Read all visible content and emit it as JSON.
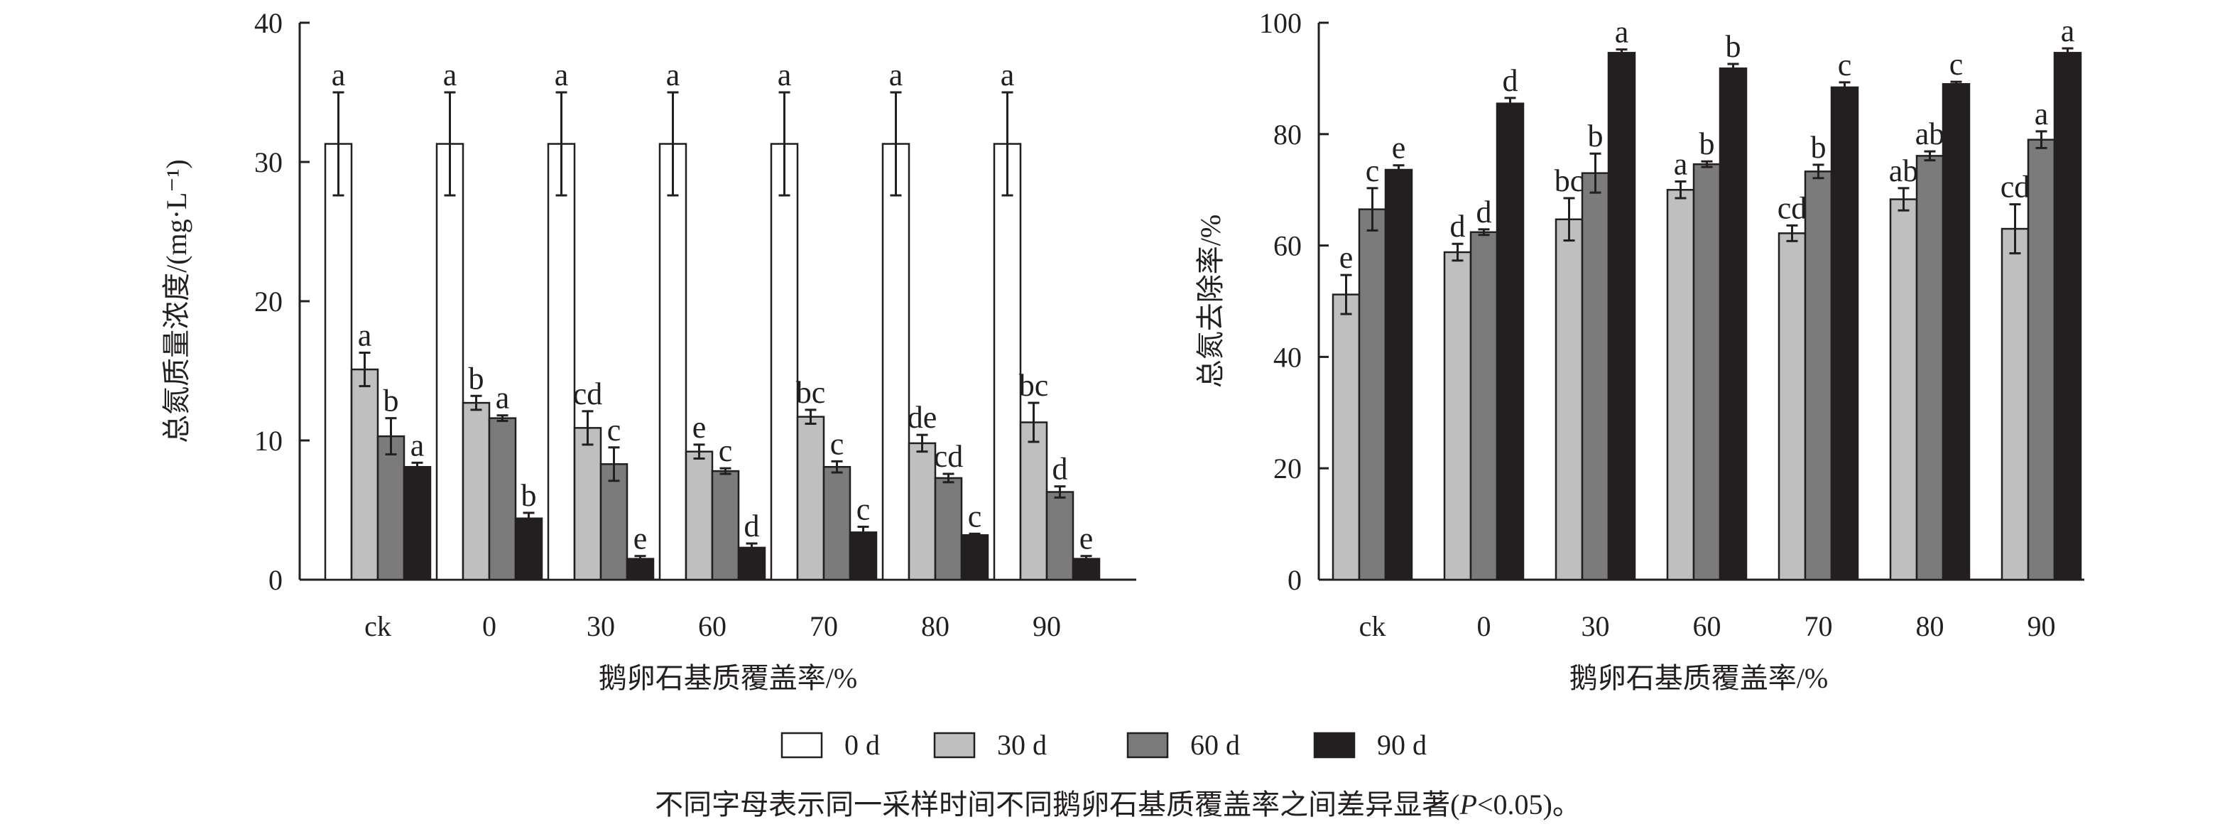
{
  "colors": {
    "0 d": "#ffffff",
    "30 d": "#bfbfbf",
    "60 d": "#7b7b7b",
    "90 d": "#231f20",
    "axis": "#231f20"
  },
  "legend": [
    "0 d",
    "30 d",
    "60 d",
    "90 d"
  ],
  "caption": {
    "pre": "不同字母表示同一采样时间不同鹅卵石基质覆盖率之间差异显著(",
    "italic": "P",
    "post": "<0.05)。"
  },
  "chart_data": [
    {
      "type": "bar",
      "xlabel": "鹅卵石基质覆盖率/%",
      "ylabel": "总氮质量浓度/(mg·L⁻¹)",
      "categories": [
        "ck",
        "0",
        "30",
        "60",
        "70",
        "80",
        "90"
      ],
      "ylim": [
        0,
        40
      ],
      "yticks": [
        0,
        10,
        20,
        30,
        40
      ],
      "grid": false,
      "series": [
        {
          "name": "0 d",
          "values": [
            31.3,
            31.3,
            31.3,
            31.3,
            31.3,
            31.3,
            31.3
          ],
          "errors": [
            3.7,
            3.7,
            3.7,
            3.7,
            3.7,
            3.7,
            3.7
          ],
          "labels": [
            "a",
            "a",
            "a",
            "a",
            "a",
            "a",
            "a"
          ]
        },
        {
          "name": "30 d",
          "values": [
            15.1,
            12.7,
            10.9,
            9.2,
            11.7,
            9.8,
            11.3
          ],
          "errors": [
            1.2,
            0.5,
            1.2,
            0.5,
            0.5,
            0.6,
            1.4
          ],
          "labels": [
            "a",
            "b",
            "cd",
            "e",
            "bc",
            "de",
            "bc"
          ]
        },
        {
          "name": "60 d",
          "values": [
            10.3,
            11.6,
            8.3,
            7.8,
            8.1,
            7.3,
            6.3
          ],
          "errors": [
            1.3,
            0.2,
            1.2,
            0.2,
            0.4,
            0.3,
            0.4
          ],
          "labels": [
            "b",
            "a",
            "c",
            "c",
            "c",
            "cd",
            "d"
          ]
        },
        {
          "name": "90 d",
          "values": [
            8.1,
            4.4,
            1.5,
            2.3,
            3.4,
            3.2,
            1.5
          ],
          "errors": [
            0.3,
            0.4,
            0.2,
            0.3,
            0.4,
            0.1,
            0.2
          ],
          "labels": [
            "a",
            "b",
            "e",
            "d",
            "c",
            "c",
            "e"
          ]
        }
      ]
    },
    {
      "type": "bar",
      "xlabel": "鹅卵石基质覆盖率/%",
      "ylabel": "总氮去除率/%",
      "categories": [
        "ck",
        "0",
        "30",
        "60",
        "70",
        "80",
        "90"
      ],
      "ylim": [
        0,
        100
      ],
      "yticks": [
        0,
        20,
        40,
        60,
        80,
        100
      ],
      "grid": false,
      "series": [
        {
          "name": "30 d",
          "values": [
            51.2,
            58.8,
            64.7,
            70.0,
            62.2,
            68.3,
            63.0
          ],
          "errors": [
            3.5,
            1.5,
            3.8,
            1.5,
            1.4,
            2.0,
            4.4
          ],
          "labels": [
            "e",
            "d",
            "bc",
            "a",
            "cd",
            "ab",
            "cd"
          ]
        },
        {
          "name": "60 d",
          "values": [
            66.5,
            62.4,
            73.0,
            74.6,
            73.3,
            76.1,
            79.0
          ],
          "errors": [
            3.8,
            0.5,
            3.5,
            0.5,
            1.2,
            0.8,
            1.5
          ],
          "labels": [
            "c",
            "d",
            "b",
            "b",
            "b",
            "ab",
            "a"
          ]
        },
        {
          "name": "90 d",
          "values": [
            73.6,
            85.5,
            94.6,
            91.8,
            88.4,
            89.0,
            94.6
          ],
          "errors": [
            0.8,
            1.0,
            0.6,
            0.8,
            0.9,
            0.4,
            0.8
          ],
          "labels": [
            "e",
            "d",
            "a",
            "b",
            "c",
            "c",
            "a"
          ]
        }
      ]
    }
  ]
}
